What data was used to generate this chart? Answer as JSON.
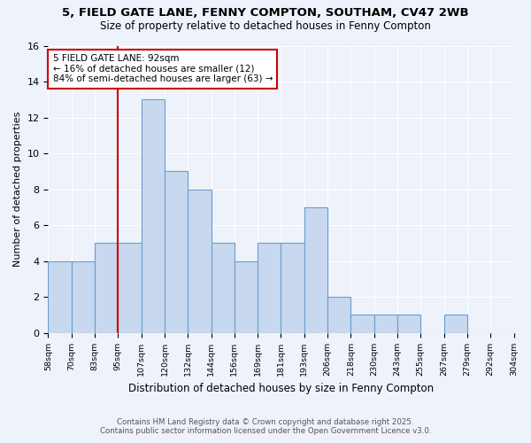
{
  "title_line1": "5, FIELD GATE LANE, FENNY COMPTON, SOUTHAM, CV47 2WB",
  "title_line2": "Size of property relative to detached houses in Fenny Compton",
  "xlabel": "Distribution of detached houses by size in Fenny Compton",
  "ylabel": "Number of detached properties",
  "bar_heights": [
    4,
    4,
    5,
    5,
    13,
    9,
    8,
    5,
    4,
    5,
    5,
    7,
    2,
    1,
    1,
    1,
    0,
    1,
    0,
    0
  ],
  "bar_color": "#c8d8ee",
  "bar_edge_color": "#6a9fd0",
  "red_line_x": 3.0,
  "annotation_line1": "5 FIELD GATE LANE: 92sqm",
  "annotation_line2": "← 16% of detached houses are smaller (12)",
  "annotation_line3": "84% of semi-detached houses are larger (63) →",
  "annotation_box_color": "#ffffff",
  "annotation_box_edge_color": "#cc0000",
  "ylim": [
    0,
    16
  ],
  "yticks": [
    0,
    2,
    4,
    6,
    8,
    10,
    12,
    14,
    16
  ],
  "tick_labels": [
    "58sqm",
    "70sqm",
    "83sqm",
    "95sqm",
    "107sqm",
    "120sqm",
    "132sqm",
    "144sqm",
    "156sqm",
    "169sqm",
    "181sqm",
    "193sqm",
    "206sqm",
    "218sqm",
    "230sqm",
    "243sqm",
    "255sqm",
    "267sqm",
    "279sqm",
    "292sqm",
    "304sqm"
  ],
  "footnote1": "Contains HM Land Registry data © Crown copyright and database right 2025.",
  "footnote2": "Contains public sector information licensed under the Open Government Licence v3.0.",
  "background_color": "#eef2fa",
  "grid_color": "#ffffff"
}
